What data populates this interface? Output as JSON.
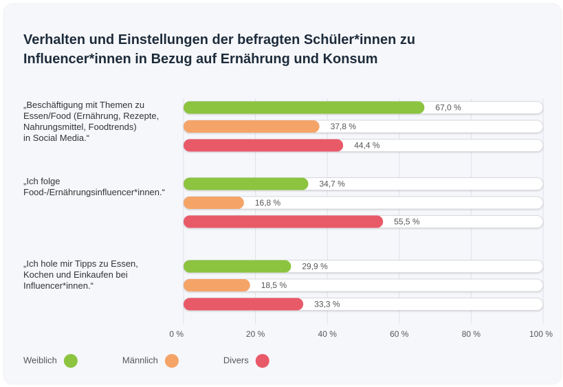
{
  "chart_data": {
    "type": "bar",
    "orientation": "horizontal",
    "title": "Verhalten und Einstellungen der befragten Schüler*innen zu\nInfluencer*innen in Bezug auf Ernährung und Konsum",
    "categories": [
      "„Beschäftigung mit Themen zu\nEssen/Food (Ernährung, Rezepte,\nNahrungsmittel, Foodtrends)\nin Social Media.“",
      "„Ich folge\nFood-/Ernährungsinfluencer*innen.“",
      "„Ich hole mir Tipps zu Essen,\nKochen und Einkaufen bei\nInfluencer*innen.“"
    ],
    "series": [
      {
        "name": "Weiblich",
        "color": "#8cc43f",
        "values": [
          67.0,
          34.7,
          29.9
        ],
        "value_labels": [
          "67,0 %",
          "34,7 %",
          "29,9 %"
        ]
      },
      {
        "name": "Männlich",
        "color": "#f5a468",
        "values": [
          37.8,
          16.8,
          18.5
        ],
        "value_labels": [
          "37,8 %",
          "16,8 %",
          "18,5 %"
        ]
      },
      {
        "name": "Divers",
        "color": "#e95a69",
        "values": [
          44.4,
          55.5,
          33.3
        ],
        "value_labels": [
          "44,4 %",
          "55,5 %",
          "33,3 %"
        ]
      }
    ],
    "xlim": [
      0,
      100
    ],
    "xticks": [
      {
        "value": 0,
        "label": "0 %"
      },
      {
        "value": 20,
        "label": "20 %"
      },
      {
        "value": 40,
        "label": "40 %"
      },
      {
        "value": 60,
        "label": "60 %"
      },
      {
        "value": 80,
        "label": "80 %"
      },
      {
        "value": 100,
        "label": "100 %"
      }
    ],
    "grid": true,
    "legend": "bottom"
  }
}
